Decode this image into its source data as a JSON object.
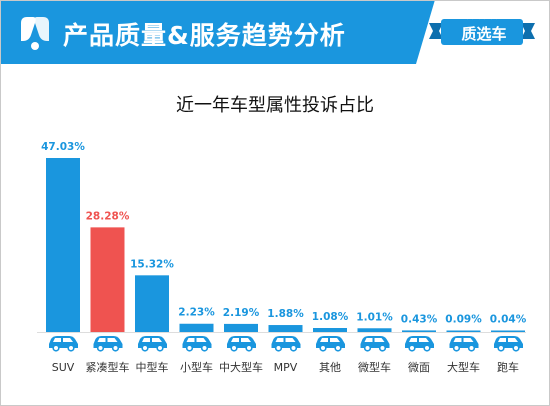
{
  "header": {
    "title": "产品质量&服务趋势分析",
    "badge_text": "质选车"
  },
  "colors": {
    "banner": "#1a96de",
    "bar_default": "#1a96de",
    "bar_highlight": "#ef5350",
    "icon_fill": "#1a96de"
  },
  "chart_data": {
    "type": "bar",
    "title": "近一年车型属性投诉占比",
    "categories": [
      "SUV",
      "紧凑型车",
      "中型车",
      "小型车",
      "中大型车",
      "MPV",
      "其他",
      "微型车",
      "微面",
      "大型车",
      "跑车"
    ],
    "values": [
      47.03,
      28.28,
      15.32,
      2.23,
      2.19,
      1.88,
      1.08,
      1.01,
      0.43,
      0.09,
      0.04
    ],
    "value_labels": [
      "47.03%",
      "28.28%",
      "15.32%",
      "2.23%",
      "2.19%",
      "1.88%",
      "1.08%",
      "1.01%",
      "0.43%",
      "0.09%",
      "0.04%"
    ],
    "highlight_index": 1,
    "unit": "%",
    "ylim": [
      0,
      47.03
    ],
    "category_icons": [
      "suv-icon",
      "compact-car-icon",
      "midsize-car-icon",
      "small-car-icon",
      "mid-large-car-icon",
      "mpv-icon",
      "other-car-icon",
      "mini-car-icon",
      "minivan-icon",
      "large-car-icon",
      "sports-car-icon"
    ],
    "grid": false,
    "legend": "none"
  }
}
